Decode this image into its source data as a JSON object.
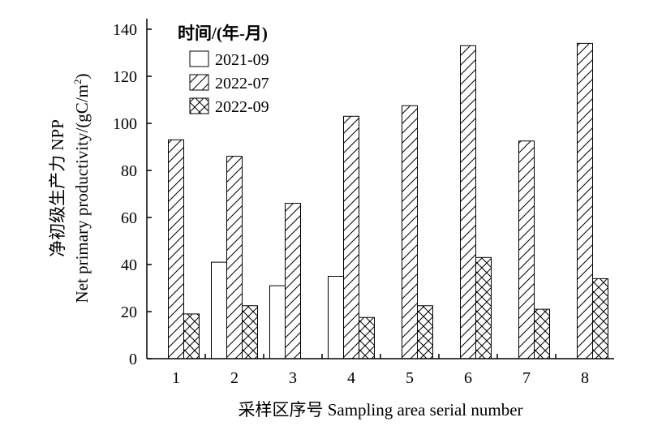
{
  "chart_data": {
    "type": "bar",
    "xlabel": "采样区序号 Sampling area serial number",
    "ylabel_line1": "净初级生产力 NPP",
    "ylabel_line2_prefix": "Net primary productivity/(gC/m",
    "ylabel_line2_sup": "2",
    "ylabel_line2_suffix": ")",
    "ylim": [
      0,
      140
    ],
    "yticks": [
      "0",
      "20",
      "40",
      "60",
      "80",
      "100",
      "120",
      "140"
    ],
    "categories": [
      "1",
      "2",
      "3",
      "4",
      "5",
      "6",
      "7",
      "8"
    ],
    "legend_title": "时间/(年-月)",
    "legend_position": "top-left",
    "grid": false,
    "series": [
      {
        "name": "2021-09",
        "pattern": "none",
        "values": [
          null,
          41,
          31,
          35,
          null,
          null,
          null,
          null
        ]
      },
      {
        "name": "2022-07",
        "pattern": "diagonal",
        "values": [
          93,
          86,
          66,
          103,
          107.5,
          133,
          92.5,
          134
        ]
      },
      {
        "name": "2022-09",
        "pattern": "crosshatch",
        "values": [
          19,
          22.5,
          null,
          17.5,
          22.5,
          43,
          21,
          34
        ]
      }
    ]
  }
}
